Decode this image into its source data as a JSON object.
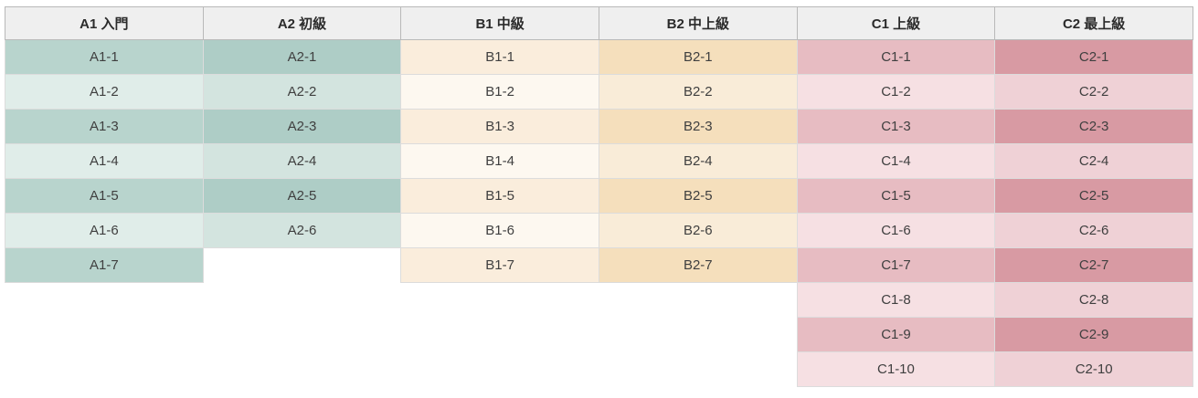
{
  "page": {
    "background": "#ffffff"
  },
  "table": {
    "header_bg": "#efefef",
    "header_text_color": "#2b2b2b",
    "cell_text_color": "#3f3f3f",
    "columns": [
      {
        "id": "A1",
        "header": "A1 入門",
        "dark": "#b8d4cd",
        "light": "#e0ede9",
        "items": [
          "A1-1",
          "A1-2",
          "A1-3",
          "A1-4",
          "A1-5",
          "A1-6",
          "A1-7"
        ]
      },
      {
        "id": "A2",
        "header": "A2 初級",
        "dark": "#aecdc6",
        "light": "#d3e4df",
        "items": [
          "A2-1",
          "A2-2",
          "A2-3",
          "A2-4",
          "A2-5",
          "A2-6"
        ]
      },
      {
        "id": "B1",
        "header": "B1 中級",
        "dark": "#faeddc",
        "light": "#fdf8f0",
        "items": [
          "B1-1",
          "B1-2",
          "B1-3",
          "B1-4",
          "B1-5",
          "B1-6",
          "B1-7"
        ]
      },
      {
        "id": "B2",
        "header": "B2 中上級",
        "dark": "#f5dfbc",
        "light": "#f9ecd8",
        "items": [
          "B2-1",
          "B2-2",
          "B2-3",
          "B2-4",
          "B2-5",
          "B2-6",
          "B2-7"
        ]
      },
      {
        "id": "C1",
        "header": "C1 上級",
        "dark": "#e7bcc2",
        "light": "#f6e0e3",
        "items": [
          "C1-1",
          "C1-2",
          "C1-3",
          "C1-4",
          "C1-5",
          "C1-6",
          "C1-7",
          "C1-8",
          "C1-9",
          "C1-10"
        ]
      },
      {
        "id": "C2",
        "header": "C2 最上級",
        "dark": "#d89aa3",
        "light": "#efd1d6",
        "items": [
          "C2-1",
          "C2-2",
          "C2-3",
          "C2-4",
          "C2-5",
          "C2-6",
          "C2-7",
          "C2-8",
          "C2-9",
          "C2-10"
        ]
      }
    ],
    "max_rows": 10
  }
}
